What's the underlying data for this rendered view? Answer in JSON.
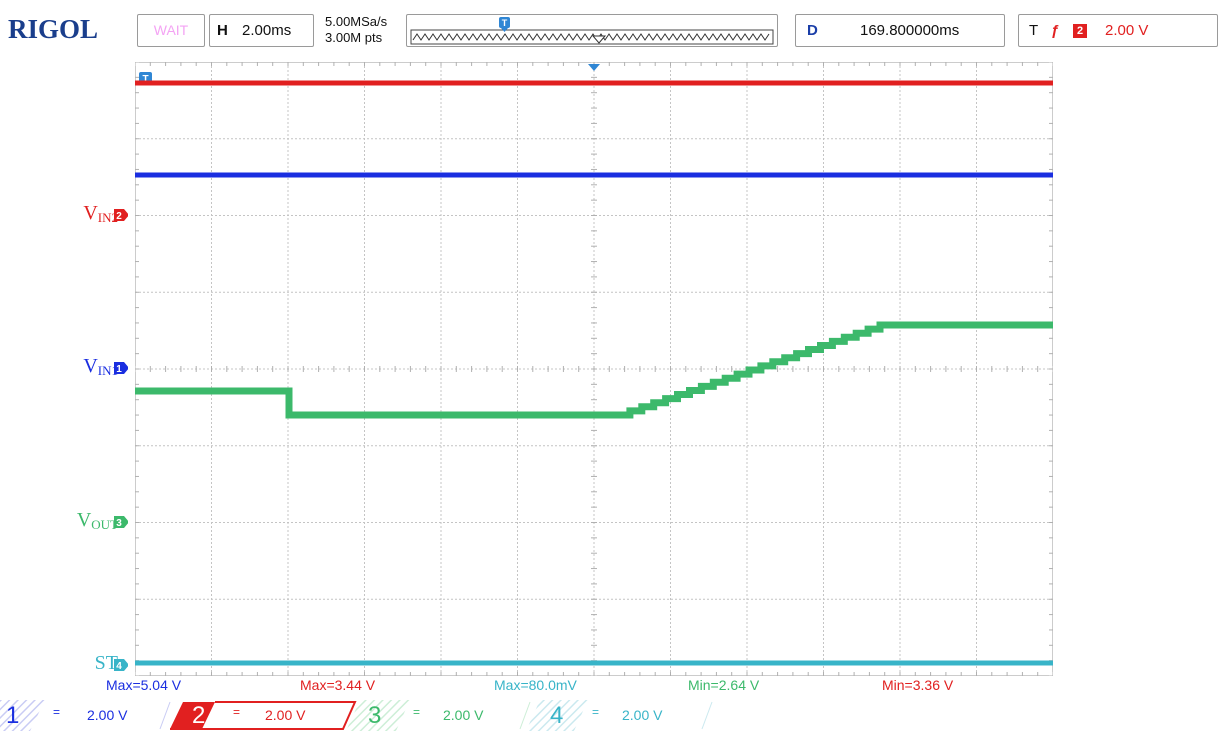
{
  "brand": "RIGOL",
  "status": "WAIT",
  "horizontal": {
    "label": "H",
    "value": "2.00ms"
  },
  "acquisition": {
    "sample_rate": "5.00MSa/s",
    "points": "3.00M pts"
  },
  "delay": {
    "label": "D",
    "value": "169.800000ms"
  },
  "trigger": {
    "label": "T",
    "edge": "ƒ",
    "channel": "2",
    "level": "2.00 V"
  },
  "trigger_position_marker": "T",
  "channel_labels": [
    {
      "main": "V",
      "sub": "IN2",
      "marker": "2",
      "color": "#e12020"
    },
    {
      "main": "V",
      "sub": "IN1",
      "marker": "1",
      "color": "#1a2ee0"
    },
    {
      "main": "V",
      "sub": "OUT",
      "marker": "3",
      "color": "#3cb96b"
    },
    {
      "main": "ST",
      "sub": "",
      "marker": "4",
      "color": "#38b4c8"
    }
  ],
  "measurements": [
    {
      "text": "Max=5.04 V",
      "color": "#1a2ee0"
    },
    {
      "text": "Max=3.44 V",
      "color": "#e12020"
    },
    {
      "text": "Max=80.0mV",
      "color": "#38b4c8"
    },
    {
      "text": "Min=2.64 V",
      "color": "#3cb96b"
    },
    {
      "text": "Min=3.36 V",
      "color": "#e12020"
    }
  ],
  "channels": [
    {
      "num": "1",
      "coupling": "=",
      "scale": "2.00 V",
      "color": "#1a2ee0"
    },
    {
      "num": "2",
      "coupling": "=",
      "scale": "2.00 V",
      "color": "#e12020"
    },
    {
      "num": "3",
      "coupling": "=",
      "scale": "2.00 V",
      "color": "#3cb96b"
    },
    {
      "num": "4",
      "coupling": "=",
      "scale": "2.00 V",
      "color": "#38b4c8"
    }
  ],
  "colors": {
    "ch1": "#1a2ee0",
    "ch2": "#e12020",
    "ch3": "#3cb96b",
    "ch4": "#38b4c8",
    "grid": "#b8b8b8",
    "brand": "#1a3e8c"
  }
}
